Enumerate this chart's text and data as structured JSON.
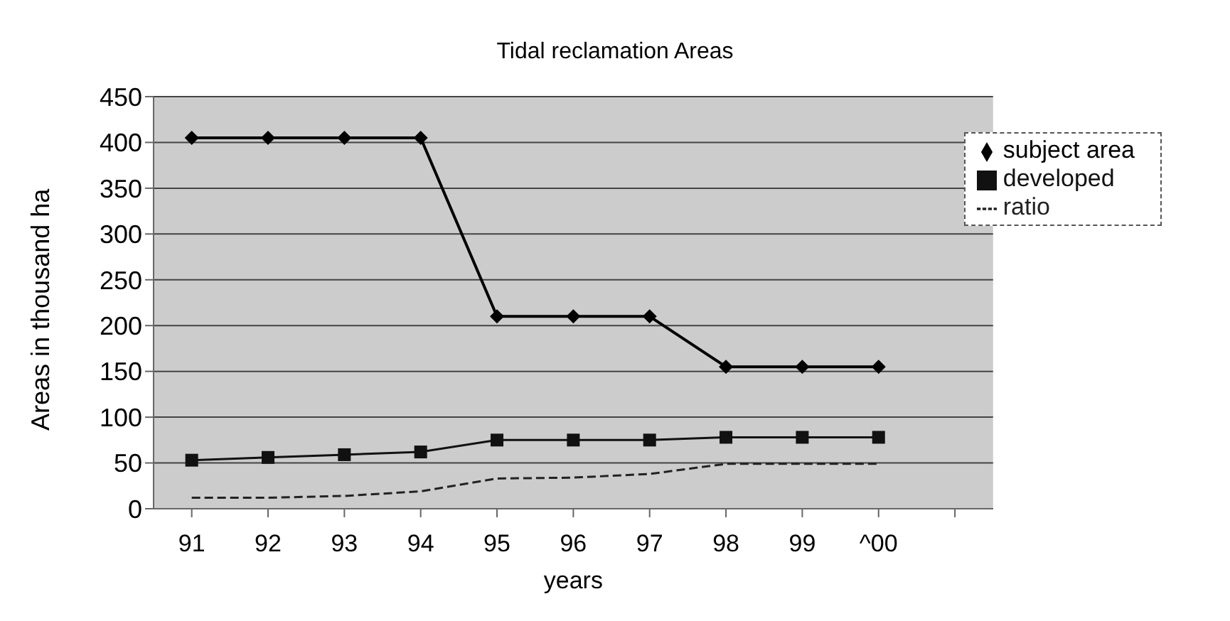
{
  "chart_data": {
    "type": "line",
    "title": "Tidal reclamation Areas",
    "xlabel": "years",
    "ylabel": "Areas in thousand ha",
    "categories": [
      "91",
      "92",
      "93",
      "94",
      "95",
      "96",
      "97",
      "98",
      "99",
      "^00",
      null
    ],
    "series": [
      {
        "name": "subject area",
        "color": "#000000",
        "marker": "diamond",
        "line_style": "solid",
        "values": [
          405,
          405,
          405,
          405,
          210,
          210,
          210,
          155,
          155,
          155,
          null
        ]
      },
      {
        "name": "developed",
        "color": "#111111",
        "marker": "square",
        "line_style": "solid",
        "values": [
          53,
          56,
          59,
          62,
          75,
          75,
          75,
          78,
          78,
          78,
          null
        ]
      },
      {
        "name": "ratio",
        "color": "#222222",
        "marker": "none",
        "line_style": "dashed",
        "values": [
          12,
          12,
          14,
          19,
          33,
          34,
          38,
          49,
          49,
          49,
          null
        ]
      }
    ],
    "ylim": [
      0,
      450
    ],
    "yticks": [
      0,
      50,
      100,
      150,
      200,
      250,
      300,
      350,
      400,
      450
    ],
    "grid": "y",
    "legend": "top right"
  }
}
